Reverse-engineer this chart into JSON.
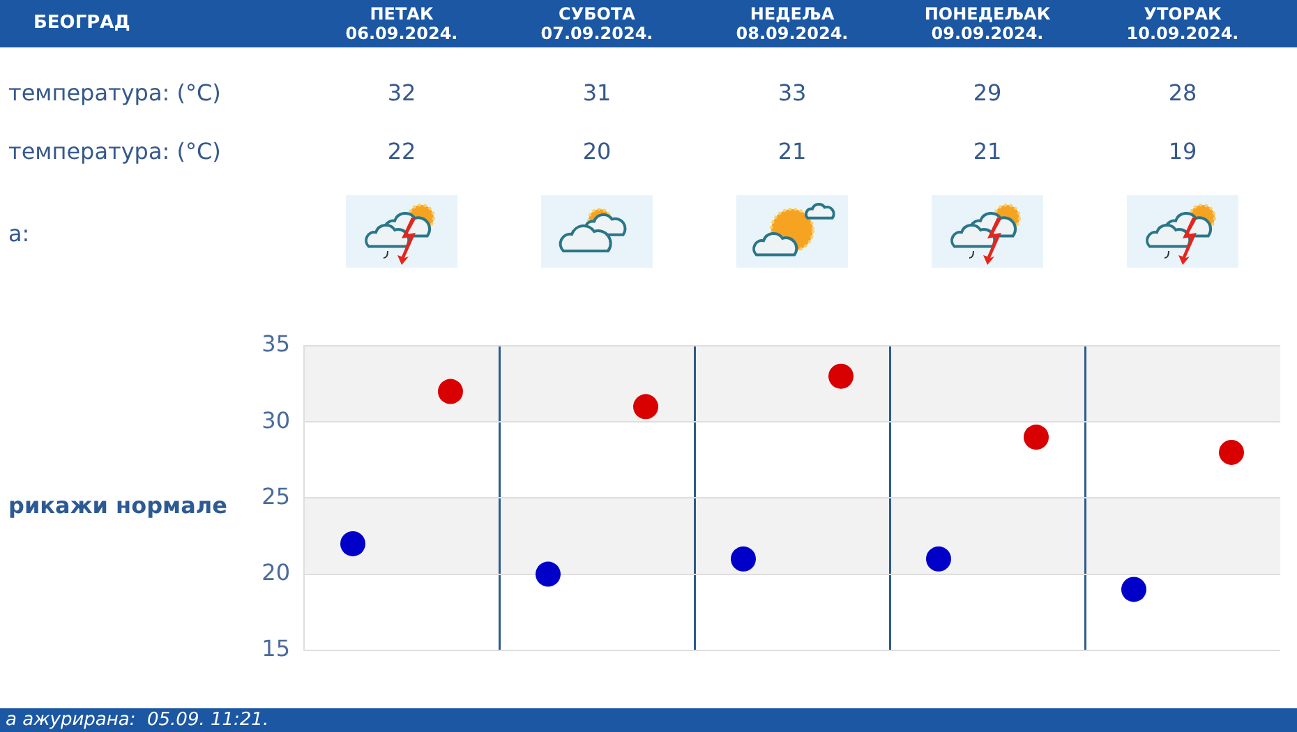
{
  "chart_data": {
    "type": "scatter",
    "title": "БЕОГРАД",
    "categories": [
      null,
      null,
      null,
      null,
      null
    ],
    "series": [
      {
        "color": "#0000c8",
        "values": [
          22,
          20,
          21,
          21,
          19
        ]
      },
      {
        "color": "#d80000",
        "values": [
          32,
          31,
          33,
          29,
          28
        ]
      }
    ],
    "ylim": [
      15,
      35
    ],
    "yticks": [
      15,
      20,
      25,
      30,
      35
    ],
    "grid": true,
    "marker": "circle",
    "data_labels": true,
    "bands": [
      {
        "axis": "y",
        "from": 20,
        "to": 25,
        "color": "#f2f2f2"
      },
      {
        "axis": "y",
        "from": 30,
        "to": 35,
        "color": "#f2f2f2"
      }
    ],
    "annotations": [
      "ПЕТАК 06.09.2024.",
      "СУБОТА 07.09.2024.",
      "НЕДЕЉА 08.09.2024.",
      "ПОНЕДЕЉАК 09.09.2024.",
      "УТОРАК 10.09.2024.",
      "температура: (°C)",
      "температура: (°C)",
      "а:",
      "рикажи нормале",
      "а ажурирана:  05.09. 11:21."
    ]
  }
}
